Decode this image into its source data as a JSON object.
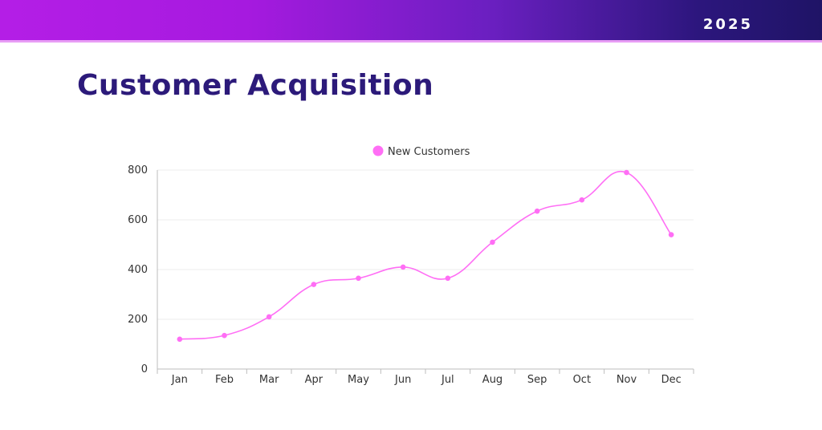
{
  "header": {
    "year": "2025"
  },
  "page": {
    "title": "Customer Acquisition"
  },
  "colors": {
    "series": "#ff6ef5",
    "title": "#2c1a7a"
  },
  "chart_data": {
    "type": "line",
    "title": "",
    "xlabel": "",
    "ylabel": "",
    "categories": [
      "Jan",
      "Feb",
      "Mar",
      "Apr",
      "May",
      "Jun",
      "Jul",
      "Aug",
      "Sep",
      "Oct",
      "Nov",
      "Dec"
    ],
    "series": [
      {
        "name": "New Customers",
        "values": [
          120,
          135,
          210,
          340,
          365,
          410,
          365,
          510,
          635,
          680,
          790,
          540
        ]
      }
    ],
    "ylim": [
      0,
      800
    ],
    "yticks": [
      0,
      200,
      400,
      600,
      800
    ],
    "grid": true,
    "legend": "top-center",
    "smooth": true
  }
}
